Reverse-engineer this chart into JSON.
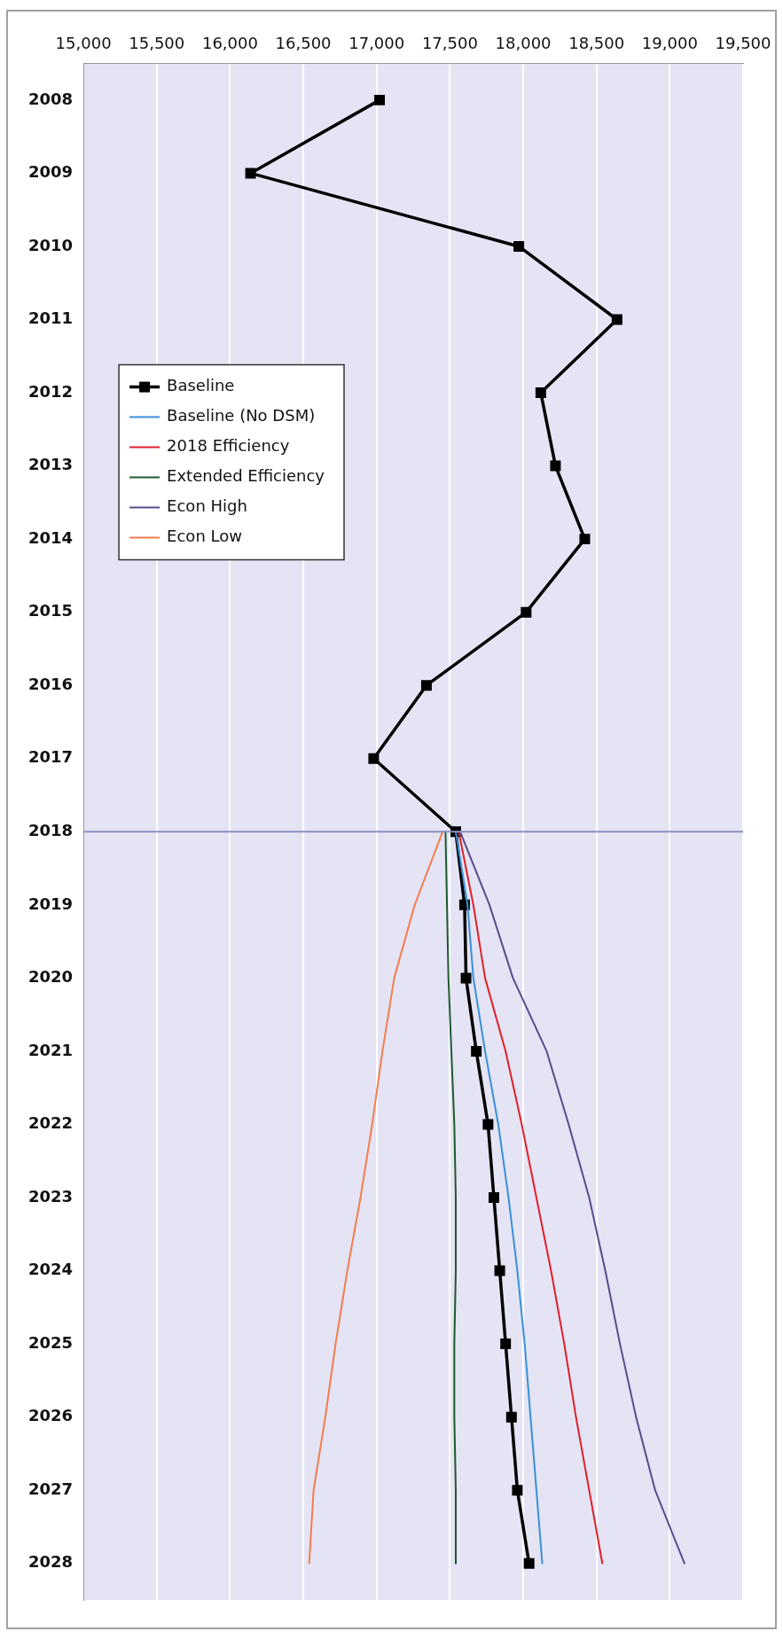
{
  "chart_data": {
    "type": "line",
    "orientation": "horizontal",
    "categories": [
      "2008",
      "2009",
      "2010",
      "2011",
      "2012",
      "2013",
      "2014",
      "2015",
      "2016",
      "2017",
      "2018",
      "2019",
      "2020",
      "2021",
      "2022",
      "2023",
      "2024",
      "2025",
      "2026",
      "2027",
      "2028"
    ],
    "series": [
      {
        "name": "Baseline",
        "color": "#000000",
        "marker": "square",
        "values": [
          17020,
          16140,
          17970,
          18640,
          18120,
          18220,
          18420,
          18020,
          17340,
          16980,
          17540,
          17600,
          17610,
          17680,
          17760,
          17800,
          17840,
          17880,
          17920,
          17960,
          18040
        ]
      },
      {
        "name": "Baseline (No DSM)",
        "color": "#3a8fd8",
        "marker": "none",
        "values": [
          null,
          null,
          null,
          null,
          null,
          null,
          null,
          null,
          null,
          null,
          17540,
          17620,
          17660,
          17740,
          17830,
          17900,
          17960,
          18010,
          18050,
          18090,
          18130
        ]
      },
      {
        "name": "2018 Efficiency",
        "color": "#e0202a",
        "marker": "none",
        "values": [
          null,
          null,
          null,
          null,
          null,
          null,
          null,
          null,
          null,
          null,
          17560,
          17660,
          17740,
          17880,
          17990,
          18090,
          18190,
          18280,
          18360,
          18450,
          18540
        ]
      },
      {
        "name": "Extended Efficiency",
        "color": "#1e5a2e",
        "marker": "none",
        "values": [
          null,
          null,
          null,
          null,
          null,
          null,
          null,
          null,
          null,
          null,
          17470,
          17480,
          17490,
          17510,
          17530,
          17540,
          17540,
          17530,
          17530,
          17540,
          17540
        ]
      },
      {
        "name": "Econ High",
        "color": "#5b4a8c",
        "marker": "none",
        "values": [
          null,
          null,
          null,
          null,
          null,
          null,
          null,
          null,
          null,
          null,
          17570,
          17770,
          17930,
          18160,
          18310,
          18450,
          18560,
          18660,
          18770,
          18900,
          19100
        ]
      },
      {
        "name": "Econ Low",
        "color": "#f47c50",
        "marker": "none",
        "values": [
          null,
          null,
          null,
          null,
          null,
          null,
          null,
          null,
          null,
          null,
          17450,
          17260,
          17120,
          17040,
          16970,
          16890,
          16800,
          16720,
          16650,
          16570,
          16540
        ]
      }
    ],
    "xlim": [
      15000,
      19500
    ],
    "xticks": [
      {
        "value": 15000,
        "label": "15,000"
      },
      {
        "value": 15500,
        "label": "15,500"
      },
      {
        "value": 16000,
        "label": "16,000"
      },
      {
        "value": 16500,
        "label": "16,500"
      },
      {
        "value": 17000,
        "label": "17,000"
      },
      {
        "value": 17500,
        "label": "17,500"
      },
      {
        "value": 18000,
        "label": "18,000"
      },
      {
        "value": 18500,
        "label": "18,500"
      },
      {
        "value": 19000,
        "label": "19,000"
      },
      {
        "value": 19500,
        "label": "19,500"
      }
    ],
    "grid": "x",
    "legend": "top left",
    "ref_lines": [
      {
        "axis": "y",
        "value": "2018",
        "color": "#8a8fbf"
      }
    ]
  }
}
